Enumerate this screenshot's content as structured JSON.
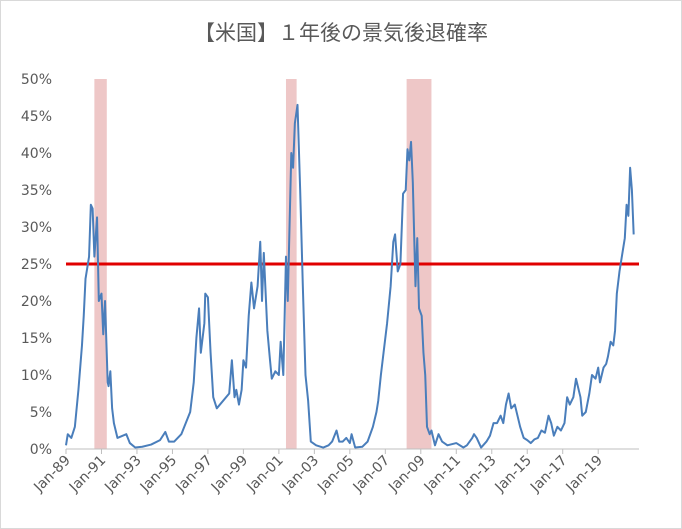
{
  "chart_data": {
    "type": "line",
    "title": "【米国】１年後の景気後退確率",
    "x": [
      1989.0,
      1989.1,
      1989.3,
      1989.5,
      1989.7,
      1989.9,
      1990.0,
      1990.1,
      1990.3,
      1990.4,
      1990.5,
      1990.6,
      1990.75,
      1990.85,
      1991.0,
      1991.1,
      1991.2,
      1991.35,
      1991.4,
      1991.5,
      1991.6,
      1991.7,
      1991.9,
      1992.4,
      1992.6,
      1992.9,
      1993.3,
      1993.8,
      1994.3,
      1994.6,
      1994.8,
      1995.1,
      1995.5,
      1996.0,
      1996.2,
      1996.35,
      1996.5,
      1996.6,
      1996.8,
      1996.85,
      1997.0,
      1997.15,
      1997.3,
      1997.5,
      1998.2,
      1998.35,
      1998.5,
      1998.6,
      1998.75,
      1998.9,
      1999.0,
      1999.15,
      1999.3,
      1999.45,
      1999.6,
      1999.8,
      1999.95,
      2000.05,
      2000.15,
      2000.35,
      2000.5,
      2000.6,
      2000.8,
      2001.0,
      2001.1,
      2001.25,
      2001.4,
      2001.5,
      2001.6,
      2001.7,
      2001.8,
      2001.9,
      2002.05,
      2002.2,
      2002.35,
      2002.5,
      2002.65,
      2002.8,
      2003.1,
      2003.5,
      2003.8,
      2004.0,
      2004.25,
      2004.4,
      2004.6,
      2004.8,
      2005.0,
      2005.1,
      2005.3,
      2005.7,
      2006.0,
      2006.3,
      2006.5,
      2006.6,
      2006.75,
      2006.9,
      2007.1,
      2007.3,
      2007.45,
      2007.55,
      2007.7,
      2007.85,
      2008.0,
      2008.15,
      2008.25,
      2008.35,
      2008.45,
      2008.55,
      2008.7,
      2008.8,
      2008.9,
      2009.05,
      2009.15,
      2009.25,
      2009.35,
      2009.5,
      2009.6,
      2009.8,
      2010.0,
      2010.2,
      2010.5,
      2011.0,
      2011.4,
      2011.6,
      2011.9,
      2012.0,
      2012.15,
      2012.4,
      2012.7,
      2012.9,
      2013.1,
      2013.3,
      2013.5,
      2013.65,
      2013.8,
      2013.95,
      2014.1,
      2014.3,
      2014.45,
      2014.6,
      2014.8,
      2015.0,
      2015.2,
      2015.4,
      2015.6,
      2015.8,
      2016.0,
      2016.2,
      2016.35,
      2016.5,
      2016.7,
      2016.9,
      2017.1,
      2017.25,
      2017.4,
      2017.6,
      2017.75,
      2017.9,
      2018.0,
      2018.1,
      2018.3,
      2018.5,
      2018.65,
      2018.85,
      2019.0,
      2019.1,
      2019.3,
      2019.45,
      2019.55,
      2019.7,
      2019.85,
      2019.95,
      2020.05,
      2020.2,
      2020.4,
      2020.5,
      2020.6,
      2020.7,
      2020.8,
      2020.9,
      2021.0
    ],
    "values": [
      0.5,
      2,
      1.5,
      3,
      8,
      14,
      18,
      23,
      26,
      33,
      32.5,
      26,
      31.3,
      20,
      21,
      15.5,
      20,
      9,
      8.5,
      10.5,
      5.5,
      3.5,
      1.5,
      2,
      0.8,
      0.2,
      0.3,
      0.6,
      1.2,
      2.3,
      1,
      1,
      2,
      5,
      9,
      15,
      19,
      13,
      17,
      21,
      20.5,
      13,
      7,
      5.5,
      7.5,
      12,
      7,
      8,
      6,
      8,
      12,
      11,
      18,
      22.5,
      19,
      22,
      28,
      20,
      26.5,
      16,
      12,
      9.5,
      10.5,
      10,
      14.5,
      10,
      26,
      20,
      30,
      40,
      38,
      44,
      46.5,
      35,
      22,
      10,
      6.5,
      1,
      0.5,
      0.2,
      0.5,
      1,
      2.5,
      1,
      1,
      1.5,
      0.8,
      2,
      0.2,
      0.3,
      1,
      3,
      5,
      6.5,
      10,
      13,
      17,
      22,
      28,
      29,
      24,
      25,
      34.5,
      35,
      40.5,
      39,
      41.5,
      36,
      22,
      28.5,
      19,
      18,
      13,
      10,
      3,
      2,
      2.5,
      0.5,
      2,
      1,
      0.5,
      0.8,
      0.2,
      0.5,
      1.5,
      2,
      1.5,
      0.2,
      1,
      1.8,
      3.5,
      3.5,
      4.5,
      3.5,
      6,
      7.5,
      5.5,
      6,
      4.5,
      3,
      1.5,
      1.2,
      0.8,
      1.3,
      1.5,
      2.5,
      2.2,
      4.5,
      3.5,
      1.8,
      3,
      2.5,
      3.5,
      7,
      6,
      7,
      9.5,
      8,
      7,
      4.5,
      5,
      7.5,
      10,
      9.5,
      11,
      9,
      11,
      11.5,
      12.5,
      14.5,
      14,
      16,
      21,
      24,
      27,
      28.5,
      33,
      31.5,
      38,
      35,
      29
    ],
    "color": "#4a7ebb",
    "xlim": [
      1989,
      2021.3
    ],
    "ylim": [
      0,
      50
    ],
    "xticks": [
      {
        "value": 1989,
        "label": "Jan-89"
      },
      {
        "value": 1991,
        "label": "Jan-91"
      },
      {
        "value": 1993,
        "label": "Jan-93"
      },
      {
        "value": 1995,
        "label": "Jan-95"
      },
      {
        "value": 1997,
        "label": "Jan-97"
      },
      {
        "value": 1999,
        "label": "Jan-99"
      },
      {
        "value": 2001,
        "label": "Jan-01"
      },
      {
        "value": 2003,
        "label": "Jan-03"
      },
      {
        "value": 2005,
        "label": "Jan-05"
      },
      {
        "value": 2007,
        "label": "Jan-07"
      },
      {
        "value": 2009,
        "label": "Jan-09"
      },
      {
        "value": 2011,
        "label": "Jan-11"
      },
      {
        "value": 2013,
        "label": "Jan-13"
      },
      {
        "value": 2015,
        "label": "Jan-15"
      },
      {
        "value": 2017,
        "label": "Jan-17"
      },
      {
        "value": 2019,
        "label": "Jan-19"
      }
    ],
    "yticks": [
      {
        "value": 0,
        "label": "0%"
      },
      {
        "value": 5,
        "label": "5%"
      },
      {
        "value": 10,
        "label": "10%"
      },
      {
        "value": 15,
        "label": "15%"
      },
      {
        "value": 20,
        "label": "20%"
      },
      {
        "value": 25,
        "label": "25%"
      },
      {
        "value": 30,
        "label": "30%"
      },
      {
        "value": 35,
        "label": "35%"
      },
      {
        "value": 40,
        "label": "40%"
      },
      {
        "value": 45,
        "label": "45%"
      },
      {
        "value": 50,
        "label": "50%"
      }
    ],
    "recessions": [
      [
        1990.6,
        1991.3
      ],
      [
        2001.4,
        2002.0
      ],
      [
        2008.2,
        2009.6
      ]
    ],
    "recession_color": "#e8b4b4",
    "reference_line": {
      "value": 25,
      "color": "#e00000"
    }
  }
}
